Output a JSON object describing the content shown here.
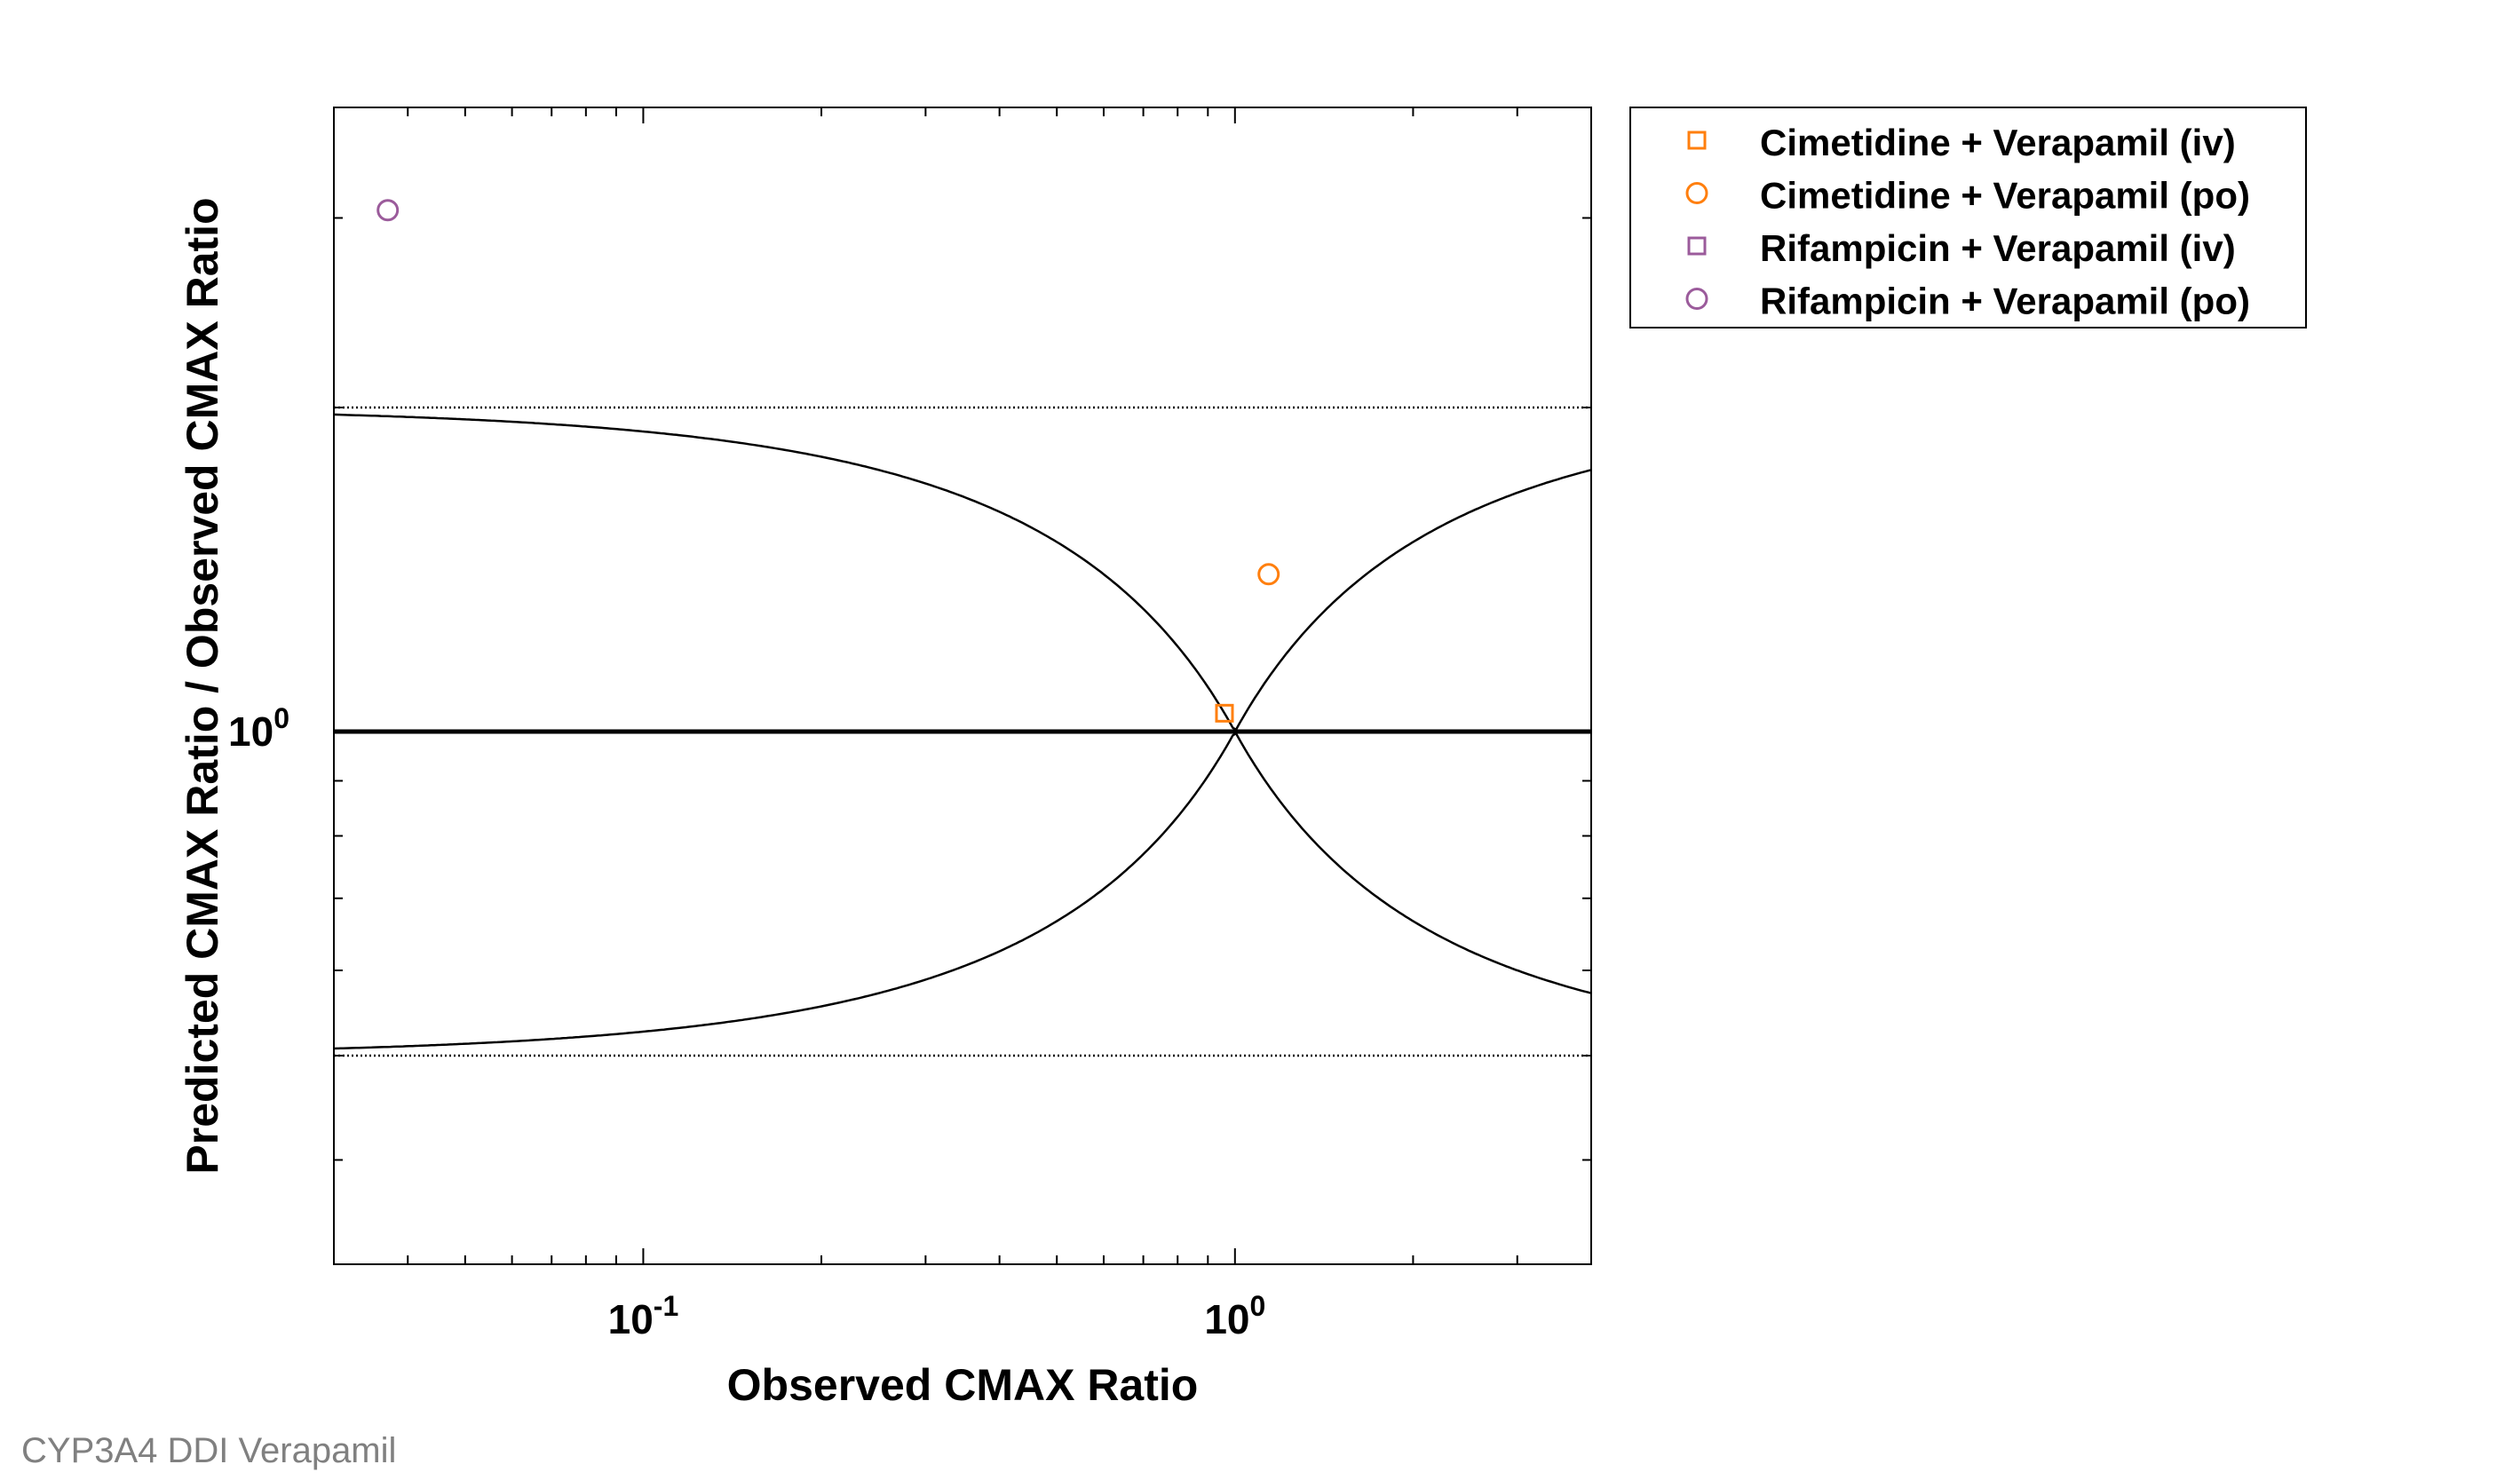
{
  "chart_data": {
    "type": "scatter",
    "title": "",
    "xlabel": "Observed CMAX Ratio",
    "ylabel": "Predicted CMAX Ratio / Observed CMAX Ratio",
    "xscale": "log",
    "yscale": "log",
    "xlim": [
      0.03,
      4.0
    ],
    "ylim": [
      0.32,
      3.8
    ],
    "x_ticks": [
      {
        "value": 0.1,
        "base": "10",
        "exponent": "-1"
      },
      {
        "value": 1,
        "base": "10",
        "exponent": "0"
      }
    ],
    "y_ticks": [
      {
        "value": 1,
        "base": "10",
        "exponent": "0"
      }
    ],
    "legend_position": "outside-top-right",
    "grid": false,
    "series": [
      {
        "name": "Cimetidine + Verapamil (iv)",
        "marker": "square",
        "color": "#ff7f0e",
        "points": [
          {
            "x": 0.96,
            "y": 1.04
          }
        ]
      },
      {
        "name": "Cimetidine + Verapamil (po)",
        "marker": "circle",
        "color": "#ff7f0e",
        "points": [
          {
            "x": 1.14,
            "y": 1.4
          }
        ]
      },
      {
        "name": "Rifampicin + Verapamil (iv)",
        "marker": "square",
        "color": "#9b5b9b",
        "points": []
      },
      {
        "name": "Rifampicin + Verapamil (po)",
        "marker": "circle",
        "color": "#9b5b9b",
        "points": [
          {
            "x": 0.037,
            "y": 3.05
          }
        ]
      }
    ],
    "reference_lines": {
      "identity": 1,
      "twofold_bounds": [
        0.5,
        2
      ],
      "guest_limits_delta": 1
    }
  },
  "footer": {
    "caption": "CYP3A4 DDI Verapamil"
  }
}
